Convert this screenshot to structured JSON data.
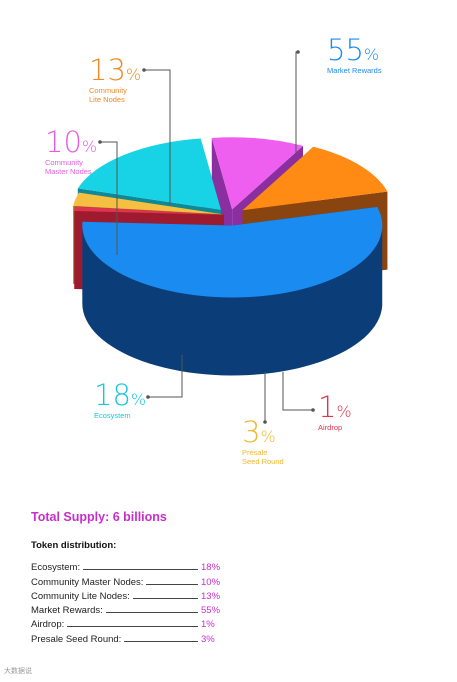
{
  "chart_data": {
    "type": "pie",
    "style": "3d-exploded",
    "slices": [
      {
        "label": "Market Rewards",
        "value": 55,
        "color": "#1a8bf0",
        "side_color": "#0b3e78"
      },
      {
        "label": "Airdrop",
        "value": 1,
        "color": "#e0334d",
        "side_color": "#9e1b2f"
      },
      {
        "label": "Presale Seed Round",
        "value": 3,
        "color": "#f5c042",
        "side_color": "#a07518"
      },
      {
        "label": "Ecosystem",
        "value": 18,
        "color": "#18d3e6",
        "side_color": "#0d8a99"
      },
      {
        "label": "Community Master Nodes",
        "value": 10,
        "color": "#ee5ff0",
        "side_color": "#8b2ea0"
      },
      {
        "label": "Community Lite Nodes",
        "value": 13,
        "color": "#ff8a14",
        "side_color": "#8a4410"
      }
    ]
  },
  "callouts": [
    {
      "pct": "55",
      "sign": "%",
      "name_lines": [
        "Market Rewards"
      ],
      "color": "#1a8bf0"
    },
    {
      "pct": "13",
      "sign": "%",
      "name_lines": [
        "Community",
        "Lite Nodes"
      ],
      "color": "#f08a24"
    },
    {
      "pct": "10",
      "sign": "%",
      "name_lines": [
        "Community",
        "Master Nodes"
      ],
      "color": "#e25de4"
    },
    {
      "pct": "18",
      "sign": "%",
      "name_lines": [
        "Ecosystem"
      ],
      "color": "#18c7da"
    },
    {
      "pct": "3",
      "sign": "%",
      "name_lines": [
        "Presale",
        "Seed Round"
      ],
      "color": "#f2b730"
    },
    {
      "pct": "1",
      "sign": "%",
      "name_lines": [
        "Airdrop"
      ],
      "color": "#e0334d"
    }
  ],
  "summary": {
    "title": "Total Supply: 6 billions",
    "heading": "Token distribution:",
    "rows": [
      {
        "name": "Ecosystem:",
        "value": "18%"
      },
      {
        "name": "Community Master Nodes:",
        "value": "10%"
      },
      {
        "name": "Community Lite Nodes:",
        "value": "13%"
      },
      {
        "name": "Market Rewards:",
        "value": "55%"
      },
      {
        "name": "Airdrop:",
        "value": "1%"
      },
      {
        "name": "Presale Seed Round:",
        "value": "3%"
      }
    ]
  },
  "watermark": "大数据说"
}
